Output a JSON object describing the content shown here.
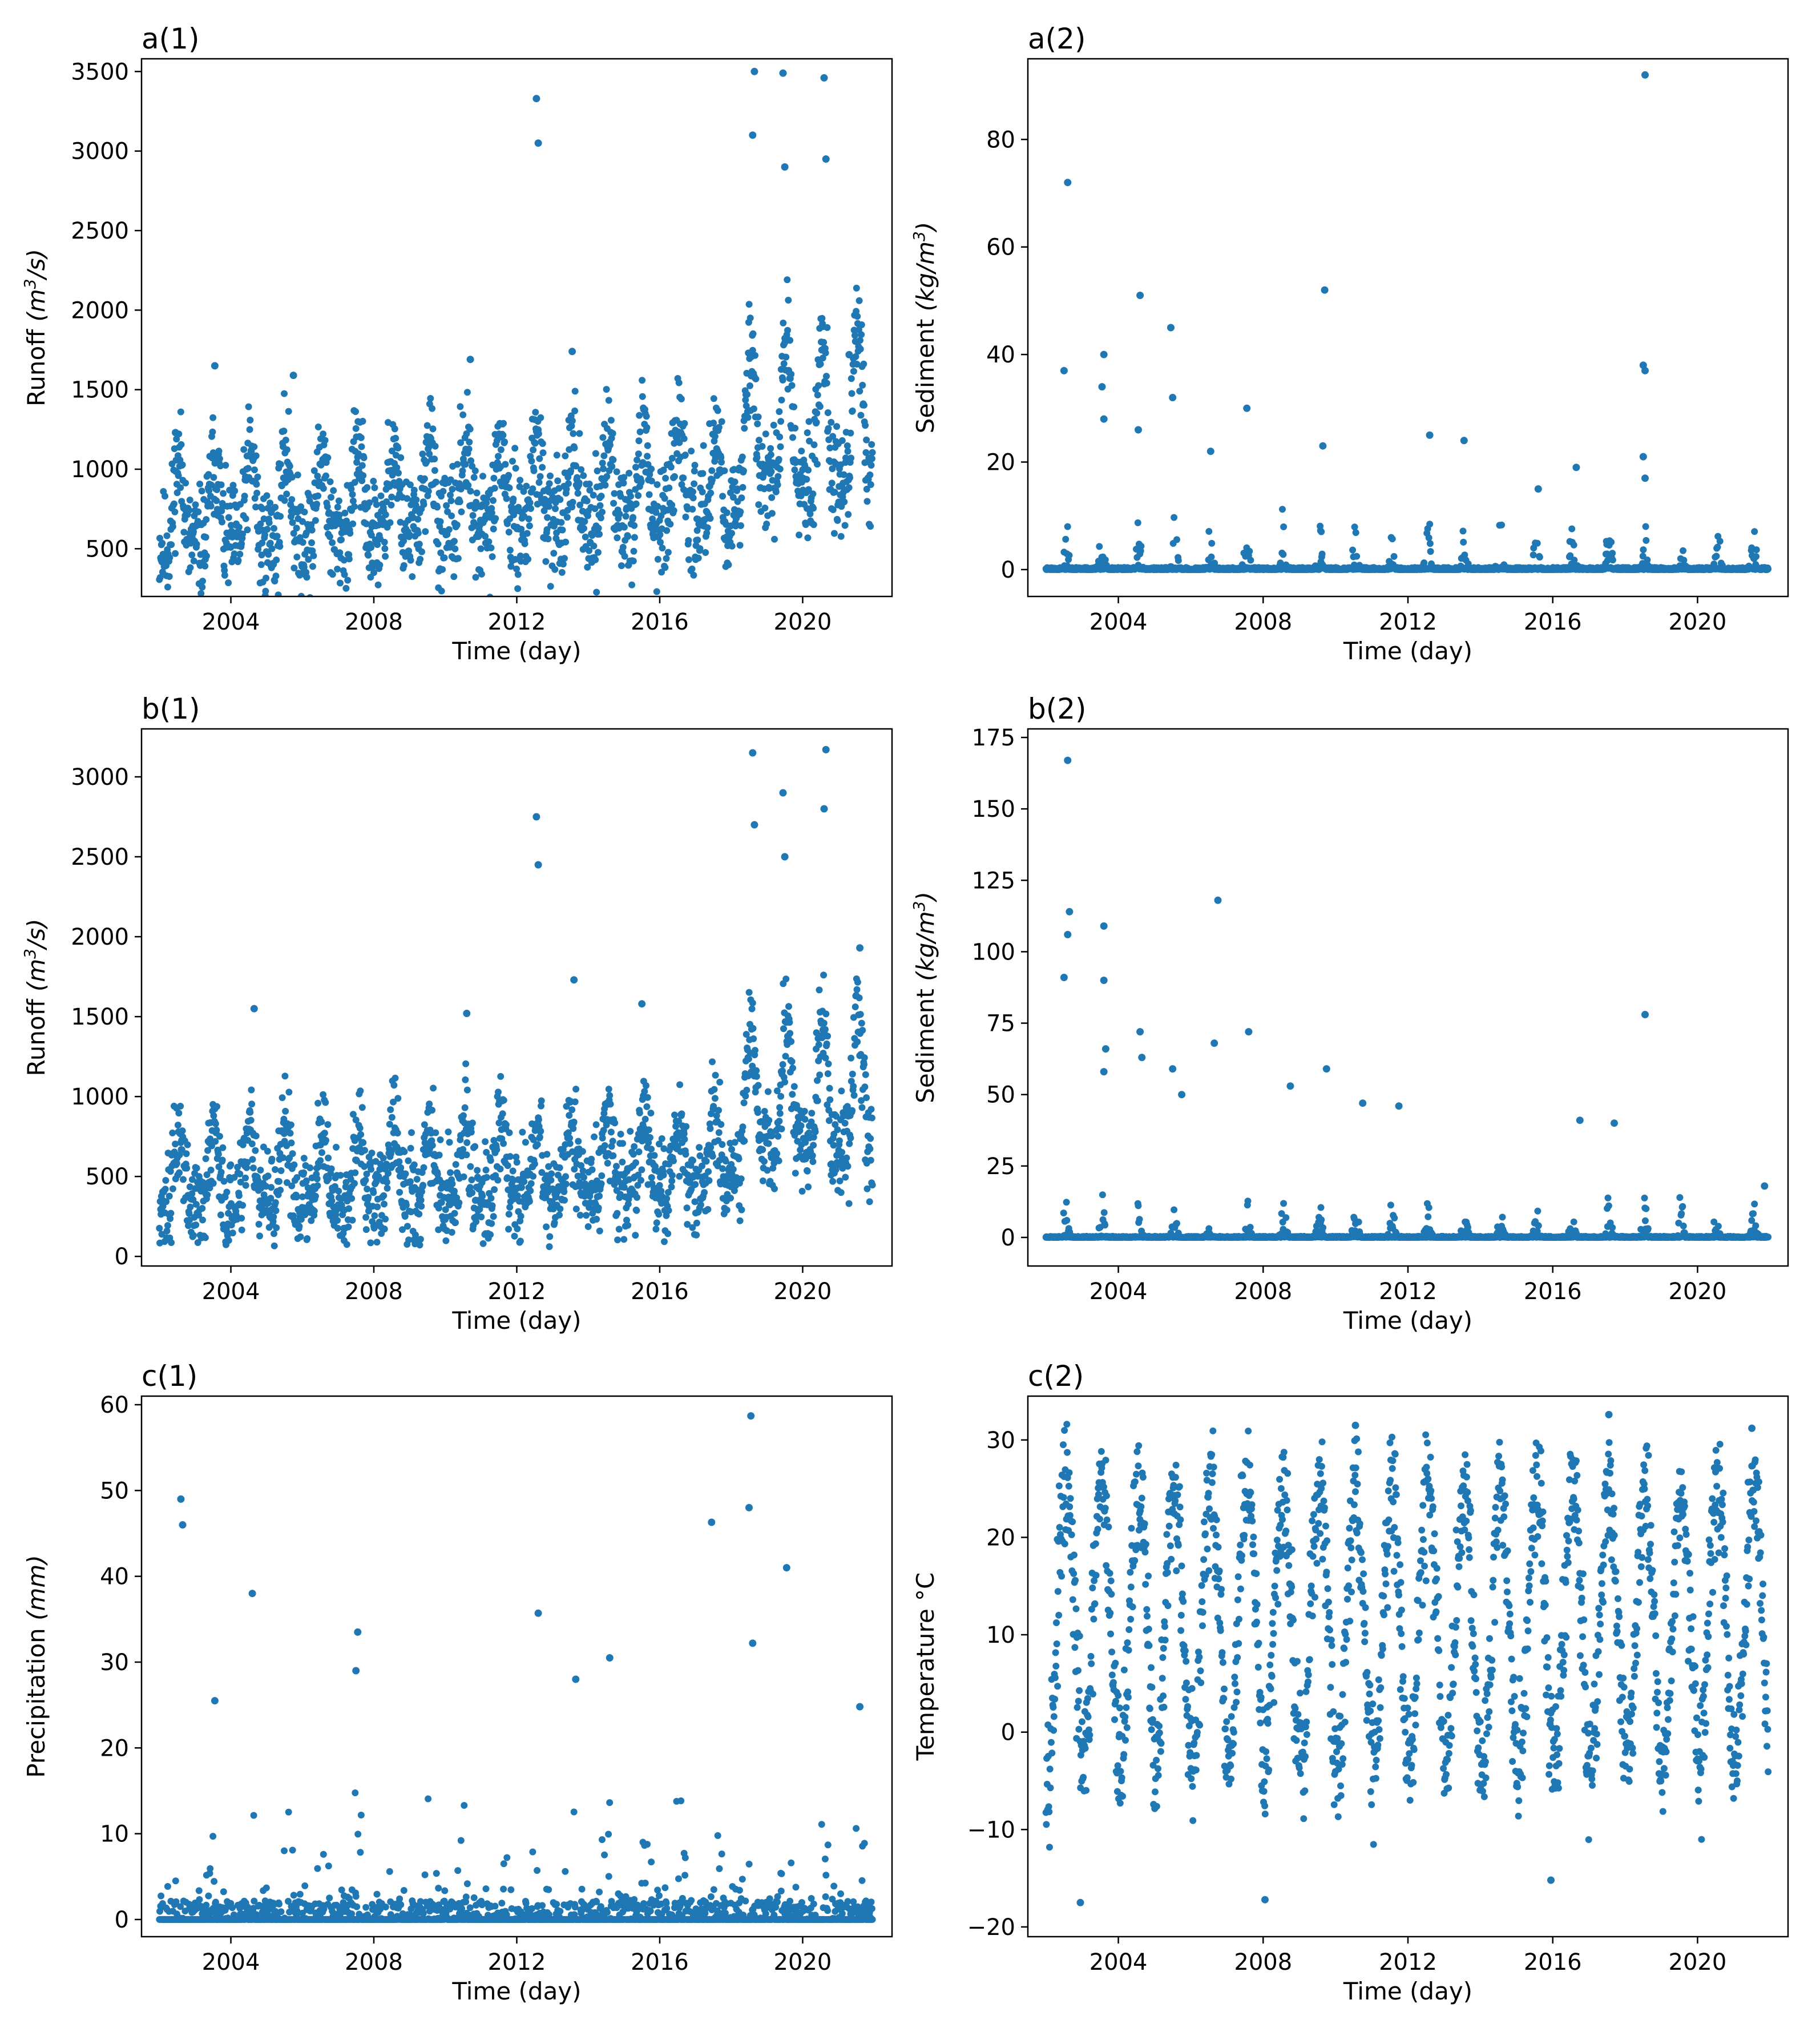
{
  "figure": {
    "color": "#1f77b4",
    "marker": "dot"
  },
  "chart_data": [
    {
      "id": "a1",
      "type": "scatter",
      "title": "a(1)",
      "xlabel": "Time (day)",
      "ylabel": "Runoff",
      "yunit": "m3/s",
      "xlim": [
        2001.5,
        2022.5
      ],
      "ylim": [
        200,
        3580
      ],
      "xticks": [
        2004,
        2008,
        2012,
        2016,
        2020
      ],
      "xtick_labels": [
        "2004",
        "2008",
        "2012",
        "2016",
        "2020"
      ],
      "yticks": [
        500,
        1000,
        1500,
        2000,
        2500,
        3000,
        3500
      ],
      "ytick_labels": [
        "500",
        "1000",
        "1500",
        "2000",
        "2500",
        "3000",
        "3500"
      ],
      "x_range": [
        2002.0,
        2021.95
      ],
      "series": {
        "kind": "runoff",
        "base": 520,
        "amp": 520,
        "noise": 260,
        "trend": 12,
        "late_boost": 520,
        "seed": 11
      },
      "peaks": [
        {
          "x": 2002.45,
          "y": 1230
        },
        {
          "x": 2003.55,
          "y": 1650
        },
        {
          "x": 2005.75,
          "y": 1590
        },
        {
          "x": 2010.7,
          "y": 1690
        },
        {
          "x": 2012.55,
          "y": 3330
        },
        {
          "x": 2012.6,
          "y": 3050
        },
        {
          "x": 2013.55,
          "y": 1740
        },
        {
          "x": 2018.65,
          "y": 3500
        },
        {
          "x": 2018.6,
          "y": 3100
        },
        {
          "x": 2019.45,
          "y": 3490
        },
        {
          "x": 2019.5,
          "y": 2900
        },
        {
          "x": 2020.6,
          "y": 3460
        },
        {
          "x": 2020.65,
          "y": 2950
        },
        {
          "x": 2021.3,
          "y": 1720
        }
      ]
    },
    {
      "id": "a2",
      "type": "scatter",
      "title": "a(2)",
      "xlabel": "Time (day)",
      "ylabel": "Sediment",
      "yunit": "kg/m3",
      "xlim": [
        2001.5,
        2022.5
      ],
      "ylim": [
        -5,
        95
      ],
      "xticks": [
        2004,
        2008,
        2012,
        2016,
        2020
      ],
      "xtick_labels": [
        "2004",
        "2008",
        "2012",
        "2016",
        "2020"
      ],
      "yticks": [
        0,
        20,
        40,
        60,
        80
      ],
      "ytick_labels": [
        "0",
        "20",
        "40",
        "60",
        "80"
      ],
      "x_range": [
        2002.0,
        2021.95
      ],
      "series": {
        "kind": "spiky",
        "peakmax": 9,
        "seed": 23
      },
      "peaks": [
        {
          "x": 2002.6,
          "y": 72
        },
        {
          "x": 2002.5,
          "y": 37
        },
        {
          "x": 2003.6,
          "y": 40
        },
        {
          "x": 2003.55,
          "y": 34
        },
        {
          "x": 2003.6,
          "y": 28
        },
        {
          "x": 2004.6,
          "y": 51
        },
        {
          "x": 2004.55,
          "y": 26
        },
        {
          "x": 2005.45,
          "y": 45
        },
        {
          "x": 2005.5,
          "y": 32
        },
        {
          "x": 2006.55,
          "y": 22
        },
        {
          "x": 2007.55,
          "y": 30
        },
        {
          "x": 2009.7,
          "y": 52
        },
        {
          "x": 2009.65,
          "y": 23
        },
        {
          "x": 2012.6,
          "y": 25
        },
        {
          "x": 2013.55,
          "y": 24
        },
        {
          "x": 2015.6,
          "y": 15
        },
        {
          "x": 2016.65,
          "y": 19
        },
        {
          "x": 2018.55,
          "y": 92
        },
        {
          "x": 2018.5,
          "y": 38
        },
        {
          "x": 2018.55,
          "y": 37
        },
        {
          "x": 2018.5,
          "y": 21
        },
        {
          "x": 2018.55,
          "y": 17
        }
      ]
    },
    {
      "id": "b1",
      "type": "scatter",
      "title": "b(1)",
      "xlabel": "Time (day)",
      "ylabel": "Runoff",
      "yunit": "m3/s",
      "xlim": [
        2001.5,
        2022.5
      ],
      "ylim": [
        -60,
        3300
      ],
      "xticks": [
        2004,
        2008,
        2012,
        2016,
        2020
      ],
      "xtick_labels": [
        "2004",
        "2008",
        "2012",
        "2016",
        "2020"
      ],
      "yticks": [
        0,
        500,
        1000,
        1500,
        2000,
        2500,
        3000
      ],
      "ytick_labels": [
        "0",
        "500",
        "1000",
        "1500",
        "2000",
        "2500",
        "3000"
      ],
      "x_range": [
        2002.0,
        2021.95
      ],
      "series": {
        "kind": "runoff",
        "base": 320,
        "amp": 420,
        "noise": 240,
        "trend": 8,
        "late_boost": 560,
        "seed": 37
      },
      "peaks": [
        {
          "x": 2004.65,
          "y": 1550
        },
        {
          "x": 2010.6,
          "y": 1520
        },
        {
          "x": 2012.55,
          "y": 2750
        },
        {
          "x": 2012.6,
          "y": 2450
        },
        {
          "x": 2013.6,
          "y": 1730
        },
        {
          "x": 2015.5,
          "y": 1580
        },
        {
          "x": 2018.6,
          "y": 3150
        },
        {
          "x": 2018.65,
          "y": 2700
        },
        {
          "x": 2019.45,
          "y": 2900
        },
        {
          "x": 2019.5,
          "y": 2500
        },
        {
          "x": 2020.65,
          "y": 3170
        },
        {
          "x": 2020.6,
          "y": 2800
        },
        {
          "x": 2021.6,
          "y": 1930
        }
      ]
    },
    {
      "id": "b2",
      "type": "scatter",
      "title": "b(2)",
      "xlabel": "Time (day)",
      "ylabel": "Sediment",
      "yunit": "kg/m3",
      "xlim": [
        2001.5,
        2022.5
      ],
      "ylim": [
        -10,
        178
      ],
      "xticks": [
        2004,
        2008,
        2012,
        2016,
        2020
      ],
      "xtick_labels": [
        "2004",
        "2008",
        "2012",
        "2016",
        "2020"
      ],
      "yticks": [
        0,
        25,
        50,
        75,
        100,
        125,
        150,
        175
      ],
      "ytick_labels": [
        "0",
        "25",
        "50",
        "75",
        "100",
        "125",
        "150",
        "175"
      ],
      "x_range": [
        2002.0,
        2021.95
      ],
      "series": {
        "kind": "spiky",
        "peakmax": 14,
        "seed": 53
      },
      "peaks": [
        {
          "x": 2002.6,
          "y": 167
        },
        {
          "x": 2002.65,
          "y": 114
        },
        {
          "x": 2002.6,
          "y": 106
        },
        {
          "x": 2002.5,
          "y": 91
        },
        {
          "x": 2003.6,
          "y": 109
        },
        {
          "x": 2003.6,
          "y": 90
        },
        {
          "x": 2003.65,
          "y": 66
        },
        {
          "x": 2003.6,
          "y": 58
        },
        {
          "x": 2004.6,
          "y": 72
        },
        {
          "x": 2004.65,
          "y": 63
        },
        {
          "x": 2005.5,
          "y": 59
        },
        {
          "x": 2005.75,
          "y": 50
        },
        {
          "x": 2006.75,
          "y": 118
        },
        {
          "x": 2006.65,
          "y": 68
        },
        {
          "x": 2007.6,
          "y": 72
        },
        {
          "x": 2008.75,
          "y": 53
        },
        {
          "x": 2009.75,
          "y": 59
        },
        {
          "x": 2010.75,
          "y": 47
        },
        {
          "x": 2011.75,
          "y": 46
        },
        {
          "x": 2016.75,
          "y": 41
        },
        {
          "x": 2017.7,
          "y": 40
        },
        {
          "x": 2018.55,
          "y": 78
        },
        {
          "x": 2021.85,
          "y": 18
        }
      ]
    },
    {
      "id": "c1",
      "type": "scatter",
      "title": "c(1)",
      "xlabel": "Time (day)",
      "ylabel": "Precipitation",
      "yunit": "mm",
      "xlim": [
        2001.5,
        2022.5
      ],
      "ylim": [
        -2,
        61
      ],
      "xticks": [
        2004,
        2008,
        2012,
        2016,
        2020
      ],
      "xtick_labels": [
        "2004",
        "2008",
        "2012",
        "2016",
        "2020"
      ],
      "yticks": [
        0,
        10,
        20,
        30,
        40,
        50,
        60
      ],
      "ytick_labels": [
        "0",
        "10",
        "20",
        "30",
        "40",
        "50",
        "60"
      ],
      "x_range": [
        2002.0,
        2021.95
      ],
      "series": {
        "kind": "precip",
        "seed": 71
      },
      "peaks": [
        {
          "x": 2002.6,
          "y": 49
        },
        {
          "x": 2002.65,
          "y": 46
        },
        {
          "x": 2003.55,
          "y": 25.5
        },
        {
          "x": 2004.6,
          "y": 38
        },
        {
          "x": 2007.55,
          "y": 33.5
        },
        {
          "x": 2007.5,
          "y": 29
        },
        {
          "x": 2012.6,
          "y": 35.7
        },
        {
          "x": 2013.65,
          "y": 28
        },
        {
          "x": 2014.6,
          "y": 30.5
        },
        {
          "x": 2017.45,
          "y": 46.3
        },
        {
          "x": 2018.55,
          "y": 58.7
        },
        {
          "x": 2018.5,
          "y": 48
        },
        {
          "x": 2018.6,
          "y": 32.2
        },
        {
          "x": 2019.55,
          "y": 41
        },
        {
          "x": 2021.6,
          "y": 24.8
        }
      ]
    },
    {
      "id": "c2",
      "type": "scatter",
      "title": "c(2)",
      "xlabel": "Time (day)",
      "ylabel": "Temperature °C",
      "yunit": "",
      "xlim": [
        2001.5,
        2022.5
      ],
      "ylim": [
        -21,
        34.5
      ],
      "xticks": [
        2004,
        2008,
        2012,
        2016,
        2020
      ],
      "xtick_labels": [
        "2004",
        "2008",
        "2012",
        "2016",
        "2020"
      ],
      "yticks": [
        -20,
        -10,
        0,
        10,
        20,
        30
      ],
      "ytick_labels": [
        "−20",
        "−10",
        "0",
        "10",
        "20",
        "30"
      ],
      "x_range": [
        2002.0,
        2021.95
      ],
      "series": {
        "kind": "temp",
        "mean": 11,
        "amp": 14,
        "noise": 5,
        "seed": 97
      },
      "peaks": [
        {
          "x": 2002.95,
          "y": -17.5
        },
        {
          "x": 2008.05,
          "y": -17.2
        },
        {
          "x": 2017.55,
          "y": 32.6
        },
        {
          "x": 2010.55,
          "y": 31.5
        },
        {
          "x": 2021.5,
          "y": 31.2
        },
        {
          "x": 2015.95,
          "y": -15.2
        }
      ]
    }
  ]
}
